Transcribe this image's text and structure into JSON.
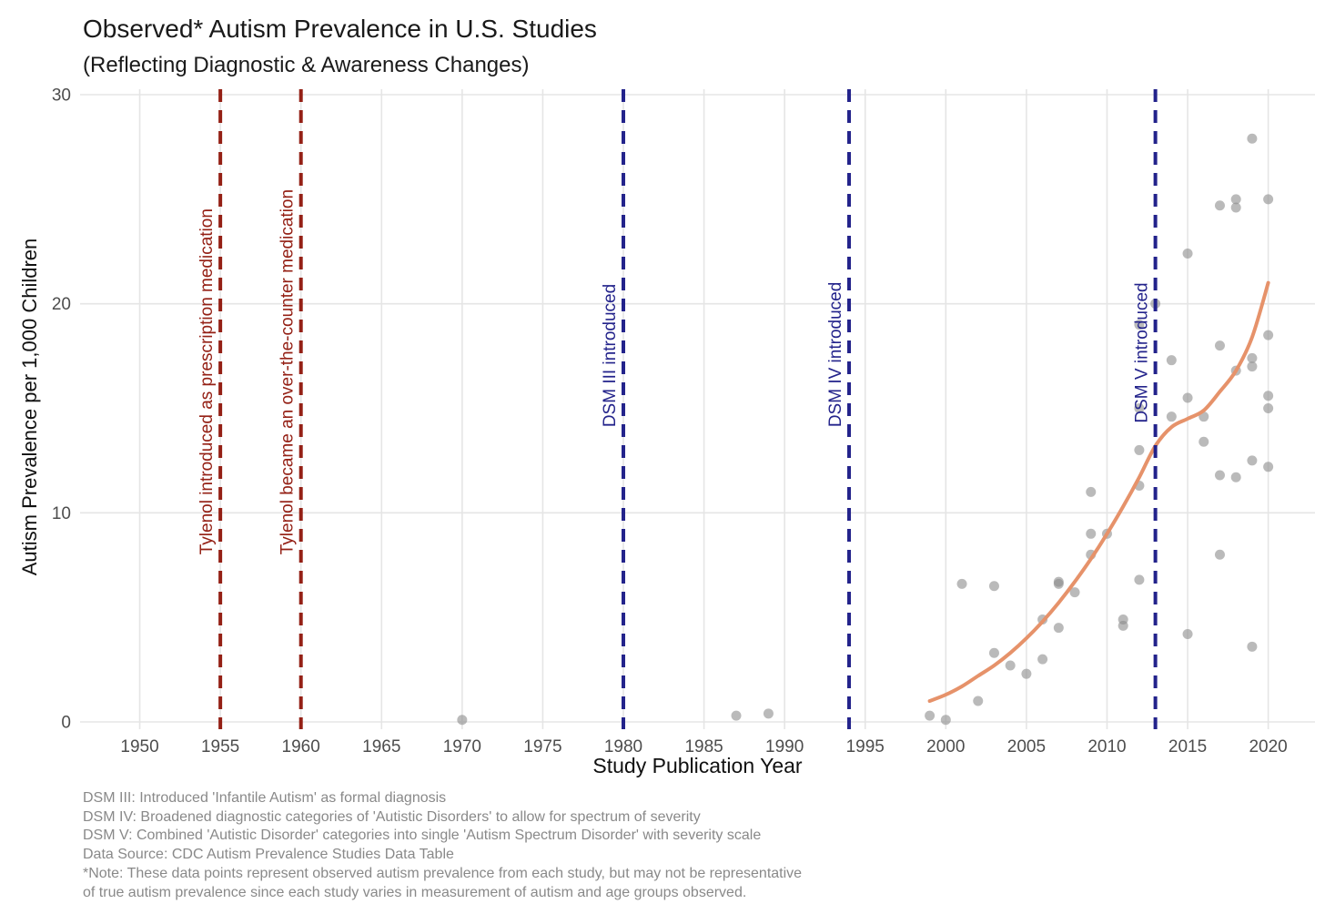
{
  "header": {
    "title": "Observed* Autism Prevalence in U.S. Studies",
    "subtitle": "(Reflecting Diagnostic & Awareness Changes)"
  },
  "chart_data": {
    "type": "scatter",
    "title": "Observed* Autism Prevalence in U.S. Studies",
    "subtitle": "(Reflecting Diagnostic & Awareness Changes)",
    "xlabel": "Study Publication Year",
    "ylabel": "Autism Prevalence per 1,000 Children",
    "xlim": [
      1946.3,
      2022.9
    ],
    "ylim": [
      0,
      30
    ],
    "x_ticks": [
      1950,
      1955,
      1960,
      1965,
      1970,
      1975,
      1980,
      1985,
      1990,
      1995,
      2000,
      2005,
      2010,
      2015,
      2020
    ],
    "y_ticks": [
      0,
      10,
      20,
      30
    ],
    "grid": true,
    "legend": "none",
    "colors": {
      "grid": "#e5e5e5",
      "tick_text": "#4d4d4d",
      "point": "#8c8c8c",
      "trend": "#e6926a",
      "tylenol_line": "#942015",
      "dsm_line": "#23238b"
    },
    "points": [
      [
        1970,
        0.1
      ],
      [
        1987,
        0.3
      ],
      [
        1989,
        0.4
      ],
      [
        1999,
        0.3
      ],
      [
        2000,
        0.1
      ],
      [
        2001,
        6.6
      ],
      [
        2002,
        1.0
      ],
      [
        2003,
        3.3
      ],
      [
        2003,
        6.5
      ],
      [
        2004,
        2.7
      ],
      [
        2005,
        2.3
      ],
      [
        2006,
        3.0
      ],
      [
        2006,
        4.9
      ],
      [
        2007,
        4.5
      ],
      [
        2007,
        6.6
      ],
      [
        2007,
        6.7
      ],
      [
        2008,
        6.2
      ],
      [
        2009,
        8.0
      ],
      [
        2009,
        9.0
      ],
      [
        2009,
        11.0
      ],
      [
        2010,
        9.0
      ],
      [
        2011,
        4.6
      ],
      [
        2011,
        4.9
      ],
      [
        2012,
        6.8
      ],
      [
        2012,
        11.3
      ],
      [
        2012,
        13.0
      ],
      [
        2012,
        15.0
      ],
      [
        2012,
        19.0
      ],
      [
        2013,
        20.0
      ],
      [
        2014,
        14.6
      ],
      [
        2014,
        17.3
      ],
      [
        2015,
        4.2
      ],
      [
        2015,
        15.5
      ],
      [
        2015,
        22.4
      ],
      [
        2016,
        13.4
      ],
      [
        2016,
        14.6
      ],
      [
        2017,
        8.0
      ],
      [
        2017,
        11.8
      ],
      [
        2017,
        18.0
      ],
      [
        2017,
        24.7
      ],
      [
        2018,
        11.7
      ],
      [
        2018,
        16.8
      ],
      [
        2018,
        24.6
      ],
      [
        2018,
        25.0
      ],
      [
        2019,
        3.6
      ],
      [
        2019,
        12.5
      ],
      [
        2019,
        17.0
      ],
      [
        2019,
        17.4
      ],
      [
        2019,
        27.9
      ],
      [
        2020,
        12.2
      ],
      [
        2020,
        15.0
      ],
      [
        2020,
        15.6
      ],
      [
        2020,
        18.5
      ],
      [
        2020,
        25.0
      ]
    ],
    "trend": {
      "name": "smoothed-trend",
      "points": [
        [
          1999,
          1.0
        ],
        [
          2000,
          1.3
        ],
        [
          2001,
          1.7
        ],
        [
          2002,
          2.2
        ],
        [
          2003,
          2.7
        ],
        [
          2004,
          3.3
        ],
        [
          2005,
          4.0
        ],
        [
          2006,
          4.8
        ],
        [
          2007,
          5.7
        ],
        [
          2008,
          6.7
        ],
        [
          2009,
          7.8
        ],
        [
          2010,
          9.0
        ],
        [
          2011,
          10.3
        ],
        [
          2012,
          11.7
        ],
        [
          2013,
          13.2
        ],
        [
          2014,
          14.1
        ],
        [
          2015,
          14.5
        ],
        [
          2016,
          14.9
        ],
        [
          2017,
          15.8
        ],
        [
          2018,
          16.8
        ],
        [
          2019,
          18.4
        ],
        [
          2020,
          21.0
        ]
      ]
    },
    "event_lines": [
      {
        "x": 1955,
        "label": "Tylenol introduced as prescription medication",
        "color": "#942015",
        "label_end": 8.0
      },
      {
        "x": 1960,
        "label": "Tylenol became an over-the-counter medication",
        "color": "#942015",
        "label_end": 8.0
      },
      {
        "x": 1980,
        "label": "DSM III introduced",
        "color": "#23238b",
        "label_end": 14.1
      },
      {
        "x": 1994,
        "label": "DSM IV introduced",
        "color": "#23238b",
        "label_end": 14.1
      },
      {
        "x": 2013,
        "label": "DSM V introduced",
        "color": "#23238b",
        "label_end": 14.3
      }
    ]
  },
  "footnotes": {
    "lines": [
      "DSM III: Introduced 'Infantile Autism' as formal diagnosis",
      "DSM IV: Broadened diagnostic categories of 'Autistic Disorders' to allow for spectrum of severity",
      "DSM V: Combined 'Autistic Disorder' categories into single 'Autism Spectrum Disorder' with severity scale",
      "Data Source: CDC Autism Prevalence Studies Data Table",
      "*Note: These data points represent observed autism prevalence from each study, but may not be representative",
      "of true autism prevalence since each study varies in measurement of autism and age groups observed."
    ]
  }
}
